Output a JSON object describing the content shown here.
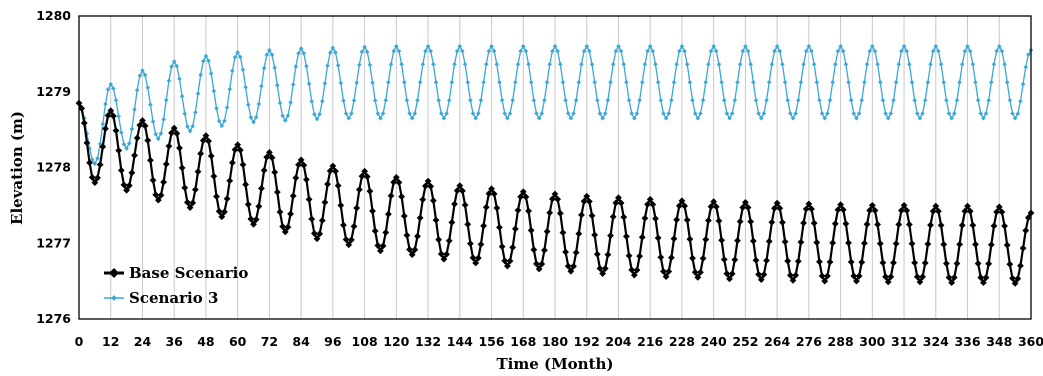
{
  "chart_data": {
    "type": "line",
    "title": "",
    "xlabel": "Time (Month)",
    "ylabel": "Elevation (m)",
    "xlim": [
      0,
      360
    ],
    "ylim": [
      1276,
      1280
    ],
    "xticks": [
      0,
      12,
      24,
      36,
      48,
      60,
      72,
      84,
      96,
      108,
      120,
      132,
      144,
      156,
      168,
      180,
      192,
      204,
      216,
      228,
      240,
      252,
      264,
      276,
      288,
      300,
      312,
      324,
      336,
      348,
      360
    ],
    "yticks": [
      1276,
      1277,
      1278,
      1279,
      1280
    ],
    "grid": "vertical",
    "legend_position": "lower-left",
    "series": [
      {
        "name": "Base Scenario",
        "color": "#000000",
        "marker": "diamond",
        "peaks": [
          {
            "month": 0,
            "value": 1278.85
          },
          {
            "month": 12,
            "value": 1278.75
          },
          {
            "month": 24,
            "value": 1278.62
          },
          {
            "month": 36,
            "value": 1278.52
          },
          {
            "month": 48,
            "value": 1278.42
          },
          {
            "month": 60,
            "value": 1278.3
          },
          {
            "month": 72,
            "value": 1278.2
          },
          {
            "month": 84,
            "value": 1278.1
          },
          {
            "month": 96,
            "value": 1278.02
          },
          {
            "month": 108,
            "value": 1277.95
          },
          {
            "month": 120,
            "value": 1277.87
          },
          {
            "month": 132,
            "value": 1277.82
          },
          {
            "month": 144,
            "value": 1277.76
          },
          {
            "month": 156,
            "value": 1277.72
          },
          {
            "month": 168,
            "value": 1277.68
          },
          {
            "month": 180,
            "value": 1277.65
          },
          {
            "month": 192,
            "value": 1277.62
          },
          {
            "month": 204,
            "value": 1277.6
          },
          {
            "month": 216,
            "value": 1277.58
          },
          {
            "month": 228,
            "value": 1277.56
          },
          {
            "month": 240,
            "value": 1277.55
          },
          {
            "month": 252,
            "value": 1277.54
          },
          {
            "month": 264,
            "value": 1277.53
          },
          {
            "month": 276,
            "value": 1277.52
          },
          {
            "month": 288,
            "value": 1277.51
          },
          {
            "month": 300,
            "value": 1277.5
          },
          {
            "month": 312,
            "value": 1277.5
          },
          {
            "month": 324,
            "value": 1277.49
          },
          {
            "month": 336,
            "value": 1277.49
          },
          {
            "month": 348,
            "value": 1277.48
          },
          {
            "month": 360,
            "value": 1277.4
          }
        ],
        "troughs": [
          {
            "month": 6,
            "value": 1277.8
          },
          {
            "month": 18,
            "value": 1277.7
          },
          {
            "month": 30,
            "value": 1277.57
          },
          {
            "month": 42,
            "value": 1277.47
          },
          {
            "month": 54,
            "value": 1277.35
          },
          {
            "month": 66,
            "value": 1277.25
          },
          {
            "month": 78,
            "value": 1277.15
          },
          {
            "month": 90,
            "value": 1277.06
          },
          {
            "month": 102,
            "value": 1276.98
          },
          {
            "month": 114,
            "value": 1276.9
          },
          {
            "month": 126,
            "value": 1276.85
          },
          {
            "month": 138,
            "value": 1276.79
          },
          {
            "month": 150,
            "value": 1276.74
          },
          {
            "month": 162,
            "value": 1276.7
          },
          {
            "month": 174,
            "value": 1276.66
          },
          {
            "month": 186,
            "value": 1276.63
          },
          {
            "month": 198,
            "value": 1276.6
          },
          {
            "month": 210,
            "value": 1276.58
          },
          {
            "month": 222,
            "value": 1276.56
          },
          {
            "month": 234,
            "value": 1276.55
          },
          {
            "month": 246,
            "value": 1276.53
          },
          {
            "month": 258,
            "value": 1276.52
          },
          {
            "month": 270,
            "value": 1276.51
          },
          {
            "month": 282,
            "value": 1276.5
          },
          {
            "month": 294,
            "value": 1276.5
          },
          {
            "month": 306,
            "value": 1276.49
          },
          {
            "month": 318,
            "value": 1276.49
          },
          {
            "month": 330,
            "value": 1276.48
          },
          {
            "month": 342,
            "value": 1276.48
          },
          {
            "month": 354,
            "value": 1276.47
          }
        ]
      },
      {
        "name": "Scenario 3",
        "color": "#39a7d8",
        "marker": "diamond",
        "peaks": [
          {
            "month": 0,
            "value": 1278.85
          },
          {
            "month": 12,
            "value": 1279.1
          },
          {
            "month": 24,
            "value": 1279.28
          },
          {
            "month": 36,
            "value": 1279.4
          },
          {
            "month": 48,
            "value": 1279.47
          },
          {
            "month": 60,
            "value": 1279.52
          },
          {
            "month": 72,
            "value": 1279.55
          },
          {
            "month": 84,
            "value": 1279.57
          },
          {
            "month": 96,
            "value": 1279.58
          },
          {
            "month": 108,
            "value": 1279.59
          },
          {
            "month": 120,
            "value": 1279.6
          },
          {
            "month": 132,
            "value": 1279.6
          },
          {
            "month": 144,
            "value": 1279.6
          },
          {
            "month": 156,
            "value": 1279.6
          },
          {
            "month": 168,
            "value": 1279.6
          },
          {
            "month": 180,
            "value": 1279.6
          },
          {
            "month": 192,
            "value": 1279.6
          },
          {
            "month": 204,
            "value": 1279.6
          },
          {
            "month": 216,
            "value": 1279.6
          },
          {
            "month": 228,
            "value": 1279.6
          },
          {
            "month": 240,
            "value": 1279.6
          },
          {
            "month": 252,
            "value": 1279.6
          },
          {
            "month": 264,
            "value": 1279.6
          },
          {
            "month": 276,
            "value": 1279.6
          },
          {
            "month": 288,
            "value": 1279.6
          },
          {
            "month": 300,
            "value": 1279.6
          },
          {
            "month": 312,
            "value": 1279.6
          },
          {
            "month": 324,
            "value": 1279.6
          },
          {
            "month": 336,
            "value": 1279.6
          },
          {
            "month": 348,
            "value": 1279.6
          },
          {
            "month": 360,
            "value": 1279.55
          }
        ],
        "troughs": [
          {
            "month": 6,
            "value": 1278.05
          },
          {
            "month": 18,
            "value": 1278.25
          },
          {
            "month": 30,
            "value": 1278.38
          },
          {
            "month": 42,
            "value": 1278.48
          },
          {
            "month": 54,
            "value": 1278.55
          },
          {
            "month": 66,
            "value": 1278.6
          },
          {
            "month": 78,
            "value": 1278.62
          },
          {
            "month": 90,
            "value": 1278.64
          },
          {
            "month": 102,
            "value": 1278.65
          },
          {
            "month": 114,
            "value": 1278.65
          },
          {
            "month": 126,
            "value": 1278.65
          },
          {
            "month": 138,
            "value": 1278.65
          },
          {
            "month": 150,
            "value": 1278.65
          },
          {
            "month": 162,
            "value": 1278.65
          },
          {
            "month": 174,
            "value": 1278.65
          },
          {
            "month": 186,
            "value": 1278.65
          },
          {
            "month": 198,
            "value": 1278.65
          },
          {
            "month": 210,
            "value": 1278.65
          },
          {
            "month": 222,
            "value": 1278.65
          },
          {
            "month": 234,
            "value": 1278.65
          },
          {
            "month": 246,
            "value": 1278.65
          },
          {
            "month": 258,
            "value": 1278.65
          },
          {
            "month": 270,
            "value": 1278.65
          },
          {
            "month": 282,
            "value": 1278.65
          },
          {
            "month": 294,
            "value": 1278.65
          },
          {
            "month": 306,
            "value": 1278.65
          },
          {
            "month": 318,
            "value": 1278.65
          },
          {
            "month": 330,
            "value": 1278.65
          },
          {
            "month": 342,
            "value": 1278.65
          },
          {
            "month": 354,
            "value": 1278.65
          }
        ]
      }
    ]
  }
}
